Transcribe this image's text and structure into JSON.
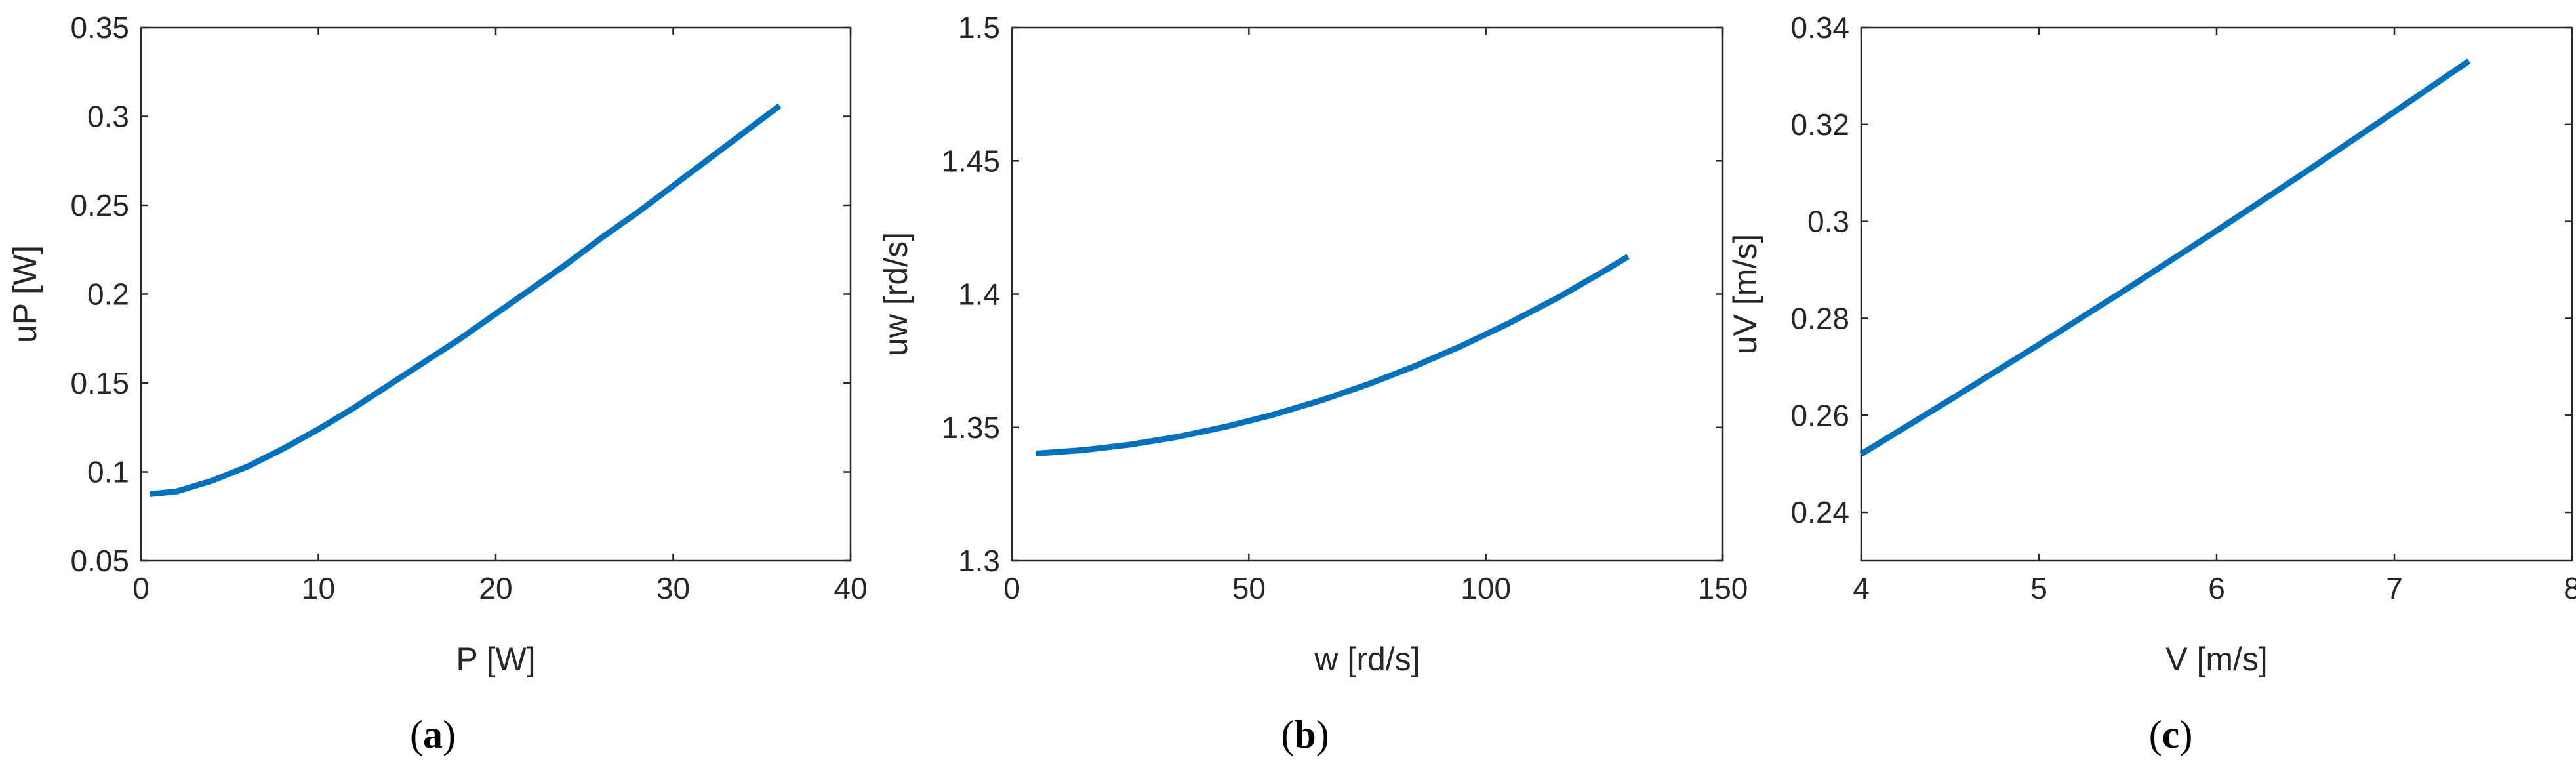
{
  "colors": {
    "series": "#0072BD",
    "axis": "#262626",
    "background": "#ffffff"
  },
  "chart_data": [
    {
      "type": "line",
      "panel": "a",
      "caption": "(a)",
      "xlabel": "P [W]",
      "ylabel": "uP [W]",
      "xlim": [
        0,
        40
      ],
      "ylim": [
        0.05,
        0.35
      ],
      "xticks": [
        0,
        10,
        20,
        30,
        40
      ],
      "xtick_labels": [
        "0",
        "10",
        "20",
        "30",
        "40"
      ],
      "yticks": [
        0.05,
        0.1,
        0.15,
        0.2,
        0.25,
        0.3,
        0.35
      ],
      "ytick_labels": [
        "0.05",
        "0.1",
        "0.15",
        "0.2",
        "0.25",
        "0.3",
        "0.35"
      ],
      "grid": false,
      "series": [
        {
          "x": [
            0.5,
            2,
            4,
            6,
            8,
            10,
            12,
            14,
            16,
            18,
            20,
            22,
            24,
            26,
            28,
            30,
            32,
            34,
            36
          ],
          "y": [
            0.0875,
            0.089,
            0.095,
            0.103,
            0.113,
            0.124,
            0.136,
            0.149,
            0.162,
            0.175,
            0.189,
            0.203,
            0.217,
            0.232,
            0.246,
            0.261,
            0.276,
            0.291,
            0.306
          ]
        }
      ]
    },
    {
      "type": "line",
      "panel": "b",
      "caption": "(b)",
      "xlabel": "w [rd/s]",
      "ylabel": "uw [rd/s]",
      "xlim": [
        0,
        150
      ],
      "ylim": [
        1.3,
        1.5
      ],
      "xticks": [
        0,
        50,
        100,
        150
      ],
      "xtick_labels": [
        "0",
        "50",
        "100",
        "150"
      ],
      "yticks": [
        1.3,
        1.35,
        1.4,
        1.45,
        1.5
      ],
      "ytick_labels": [
        "1.3",
        "1.35",
        "1.4",
        "1.45",
        "1.5"
      ],
      "grid": false,
      "series": [
        {
          "x": [
            5,
            15,
            25,
            35,
            45,
            55,
            65,
            75,
            85,
            95,
            105,
            115,
            125,
            130
          ],
          "y": [
            1.3402,
            1.3415,
            1.3436,
            1.3465,
            1.3502,
            1.3547,
            1.36,
            1.3661,
            1.373,
            1.3807,
            1.3892,
            1.3985,
            1.4087,
            1.4141
          ]
        }
      ]
    },
    {
      "type": "line",
      "panel": "c",
      "caption": "(c)",
      "xlabel": "V [m/s]",
      "ylabel": "uV [m/s]",
      "xlim": [
        4,
        8
      ],
      "ylim": [
        0.23,
        0.34
      ],
      "xticks": [
        4,
        5,
        6,
        7,
        8
      ],
      "xtick_labels": [
        "4",
        "5",
        "6",
        "7",
        "8"
      ],
      "yticks": [
        0.24,
        0.26,
        0.28,
        0.3,
        0.32,
        0.34
      ],
      "ytick_labels": [
        "0.24",
        "0.26",
        "0.28",
        "0.3",
        "0.32",
        "0.34"
      ],
      "grid": false,
      "series": [
        {
          "x": [
            4,
            4.5,
            5,
            5.5,
            6,
            6.5,
            7,
            7.42
          ],
          "y": [
            0.252,
            0.2632,
            0.2746,
            0.2862,
            0.2981,
            0.3102,
            0.3226,
            0.3331
          ]
        }
      ]
    }
  ]
}
